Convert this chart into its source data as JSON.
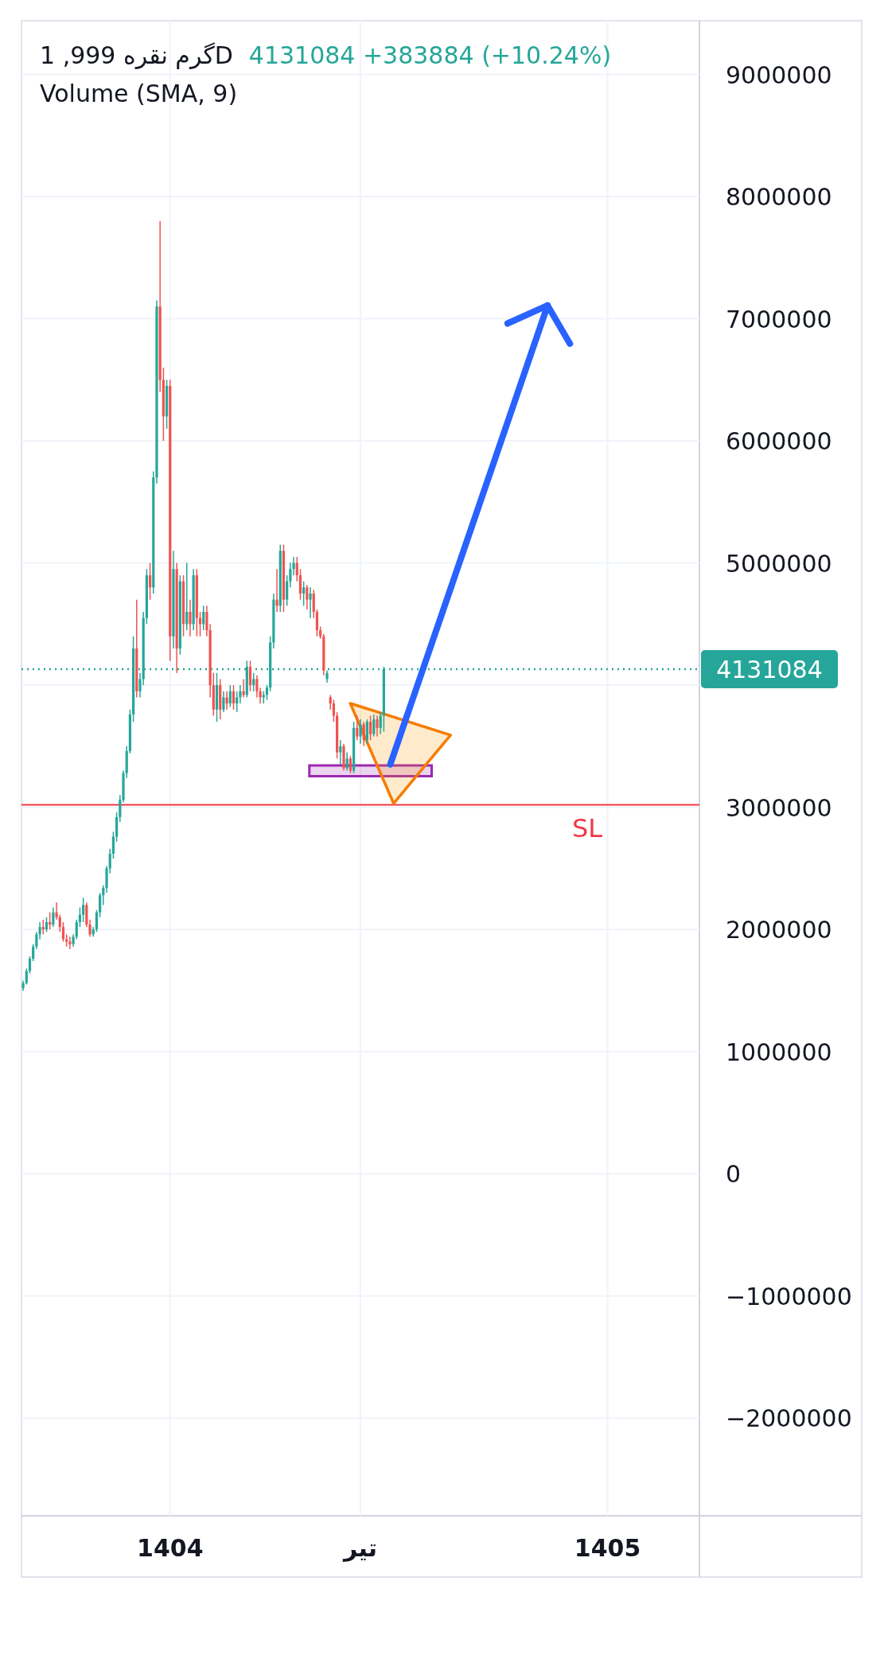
{
  "chart_data": {
    "type": "candlestick",
    "title": "گرم نقره 999, 1D",
    "subtitle": "Volume (SMA, 9)",
    "annotations": [
      "4131084  +383884 (+10.24%)"
    ],
    "categories": [
      null,
      null,
      null,
      null,
      null,
      null,
      null,
      null,
      null,
      null,
      null,
      null,
      null,
      null,
      null,
      null,
      null,
      null,
      null,
      null,
      null,
      null,
      null,
      null,
      null,
      null,
      null,
      null,
      null,
      null,
      null,
      null,
      null,
      null,
      null,
      null,
      null,
      null,
      null,
      null,
      null,
      null,
      null,
      null,
      "1404",
      null,
      null,
      null,
      null,
      null,
      null,
      null,
      null,
      null,
      null,
      null,
      null,
      null,
      null,
      null,
      null,
      null,
      null,
      null,
      null,
      null,
      null,
      null,
      null,
      null,
      null,
      null,
      null,
      null,
      null,
      null,
      null,
      null,
      null,
      null,
      null,
      null,
      null,
      null,
      null,
      null,
      null,
      null,
      null,
      null,
      null,
      null,
      null,
      null,
      null,
      null,
      null,
      null,
      null,
      null,
      null,
      "تیر",
      null,
      null,
      null,
      null,
      null,
      null,
      null,
      null,
      null,
      null,
      null,
      null,
      null,
      null,
      null,
      null,
      null,
      null,
      null,
      null,
      null,
      null,
      null,
      null,
      null,
      null,
      null,
      null,
      null,
      null,
      null,
      null,
      null,
      null,
      null,
      null,
      null,
      null,
      null,
      null,
      null,
      null,
      null,
      null,
      null,
      null,
      null,
      null,
      null,
      null,
      null,
      null,
      null,
      null,
      null,
      null,
      null,
      null,
      null,
      null,
      null,
      null,
      null,
      null,
      null,
      null,
      null,
      null,
      null,
      null,
      null,
      null,
      null,
      "1405",
      null,
      null,
      null,
      null,
      null,
      null,
      null,
      null,
      null,
      null,
      null,
      null,
      null,
      null,
      null,
      null,
      null,
      null,
      null,
      null,
      null,
      null,
      null,
      null,
      null,
      null,
      null
    ],
    "ohlc": [
      [
        1520000,
        1580000,
        1500000,
        1560000
      ],
      [
        1560000,
        1680000,
        1550000,
        1660000
      ],
      [
        1660000,
        1780000,
        1640000,
        1760000
      ],
      [
        1760000,
        1880000,
        1740000,
        1860000
      ],
      [
        1860000,
        1980000,
        1840000,
        1960000
      ],
      [
        1960000,
        2060000,
        1920000,
        2020000
      ],
      [
        2020000,
        2080000,
        1960000,
        2000000
      ],
      [
        2000000,
        2100000,
        1980000,
        2060000
      ],
      [
        2060000,
        2140000,
        2000000,
        2040000
      ],
      [
        2040000,
        2180000,
        2020000,
        2140000
      ],
      [
        2140000,
        2220000,
        2080000,
        2100000
      ],
      [
        2100000,
        2120000,
        1980000,
        2020000
      ],
      [
        2020000,
        2060000,
        1900000,
        1920000
      ],
      [
        1920000,
        1960000,
        1860000,
        1900000
      ],
      [
        1900000,
        1940000,
        1840000,
        1880000
      ],
      [
        1880000,
        1960000,
        1860000,
        1940000
      ],
      [
        1940000,
        2080000,
        1920000,
        2060000
      ],
      [
        2060000,
        2180000,
        2020000,
        2120000
      ],
      [
        2120000,
        2260000,
        2060000,
        2200000
      ],
      [
        2200000,
        2220000,
        2020000,
        2040000
      ],
      [
        2040000,
        2080000,
        1940000,
        1960000
      ],
      [
        1960000,
        2020000,
        1940000,
        2000000
      ],
      [
        2000000,
        2160000,
        1980000,
        2140000
      ],
      [
        2140000,
        2300000,
        2100000,
        2280000
      ],
      [
        2280000,
        2360000,
        2200000,
        2340000
      ],
      [
        2340000,
        2520000,
        2300000,
        2500000
      ],
      [
        2500000,
        2660000,
        2460000,
        2620000
      ],
      [
        2620000,
        2800000,
        2580000,
        2760000
      ],
      [
        2760000,
        2960000,
        2720000,
        2920000
      ],
      [
        2920000,
        3100000,
        2880000,
        3060000
      ],
      [
        3060000,
        3300000,
        3040000,
        3280000
      ],
      [
        3280000,
        3500000,
        3240000,
        3460000
      ],
      [
        3460000,
        3800000,
        3440000,
        3760000
      ],
      [
        3760000,
        4400000,
        3700000,
        4300000
      ],
      [
        4300000,
        4700000,
        3900000,
        3950000
      ],
      [
        3950000,
        4100000,
        3900000,
        4050000
      ],
      [
        4050000,
        4600000,
        4000000,
        4550000
      ],
      [
        4550000,
        4950000,
        4500000,
        4900000
      ],
      [
        4900000,
        5000000,
        4700000,
        4800000
      ],
      [
        4800000,
        5750000,
        4750000,
        5700000
      ],
      [
        5700000,
        7150000,
        5650000,
        7100000
      ],
      [
        7100000,
        7800000,
        6400000,
        6500000
      ],
      [
        6500000,
        6600000,
        6000000,
        6200000
      ],
      [
        6200000,
        6500000,
        6100000,
        6450000
      ],
      [
        6450000,
        6500000,
        4200000,
        4400000
      ],
      [
        4400000,
        5100000,
        4300000,
        4950000
      ],
      [
        4950000,
        5000000,
        4100000,
        4300000
      ],
      [
        4300000,
        4900000,
        4250000,
        4850000
      ],
      [
        4850000,
        4900000,
        4400000,
        4500000
      ],
      [
        4500000,
        5000000,
        4450000,
        4600000
      ],
      [
        4600000,
        4700000,
        4400000,
        4500000
      ],
      [
        4500000,
        4950000,
        4450000,
        4900000
      ],
      [
        4900000,
        4950000,
        4400000,
        4550000
      ],
      [
        4550000,
        4600000,
        4400000,
        4500000
      ],
      [
        4500000,
        4650000,
        4450000,
        4600000
      ],
      [
        4600000,
        4650000,
        4400000,
        4450000
      ],
      [
        4450000,
        4500000,
        3900000,
        4000000
      ],
      [
        4000000,
        4100000,
        3750000,
        3800000
      ],
      [
        3800000,
        4100000,
        3700000,
        4000000
      ],
      [
        4000000,
        4050000,
        3720000,
        3800000
      ],
      [
        3800000,
        3950000,
        3780000,
        3900000
      ],
      [
        3900000,
        3950000,
        3800000,
        3850000
      ],
      [
        3850000,
        4000000,
        3820000,
        3950000
      ],
      [
        3950000,
        4000000,
        3800000,
        3850000
      ],
      [
        3850000,
        3950000,
        3780000,
        3900000
      ],
      [
        3900000,
        4000000,
        3850000,
        3950000
      ],
      [
        3950000,
        4050000,
        3900000,
        3920000
      ],
      [
        3920000,
        4200000,
        3900000,
        4150000
      ],
      [
        4150000,
        4200000,
        3950000,
        4000000
      ],
      [
        4000000,
        4100000,
        3950000,
        4050000
      ],
      [
        4050000,
        4080000,
        3900000,
        3950000
      ],
      [
        3950000,
        3980000,
        3850000,
        3900000
      ],
      [
        3900000,
        3950000,
        3850000,
        3920000
      ],
      [
        3920000,
        4000000,
        3880000,
        3980000
      ],
      [
        3980000,
        4400000,
        3950000,
        4350000
      ],
      [
        4350000,
        4750000,
        4300000,
        4700000
      ],
      [
        4700000,
        4950000,
        4600000,
        4650000
      ],
      [
        4650000,
        5150000,
        4600000,
        5100000
      ],
      [
        5100000,
        5150000,
        4600000,
        4700000
      ],
      [
        4700000,
        4900000,
        4650000,
        4850000
      ],
      [
        4850000,
        5000000,
        4800000,
        4950000
      ],
      [
        4950000,
        5050000,
        4900000,
        5000000
      ],
      [
        5000000,
        5050000,
        4850000,
        4900000
      ],
      [
        4900000,
        4950000,
        4700000,
        4750000
      ],
      [
        4750000,
        4850000,
        4650000,
        4800000
      ],
      [
        4800000,
        4820000,
        4620000,
        4700000
      ],
      [
        4700000,
        4800000,
        4550000,
        4750000
      ],
      [
        4750000,
        4780000,
        4550000,
        4600000
      ],
      [
        4600000,
        4620000,
        4400000,
        4450000
      ],
      [
        4450000,
        4480000,
        4380000,
        4400000
      ],
      [
        4400000,
        4420000,
        4080000,
        4120000
      ],
      [
        4050000,
        4120000,
        4020000,
        4100000
      ],
      [
        3900000,
        3920000,
        3800000,
        3850000
      ],
      [
        3850000,
        3880000,
        3700000,
        3750000
      ],
      [
        3750000,
        3780000,
        3400000,
        3450000
      ],
      [
        3450000,
        3550000,
        3350000,
        3500000
      ],
      [
        3500000,
        3520000,
        3300000,
        3320000
      ],
      [
        3320000,
        3450000,
        3300000,
        3400000
      ],
      [
        3400000,
        3420000,
        3280000,
        3300000
      ],
      [
        3300000,
        3700000,
        3280000,
        3650000
      ],
      [
        3650000,
        3750000,
        3550000,
        3580000
      ],
      [
        3580000,
        3720000,
        3520000,
        3680000
      ],
      [
        3680000,
        3700000,
        3500000,
        3550000
      ],
      [
        3550000,
        3720000,
        3520000,
        3700000
      ],
      [
        3700000,
        3750000,
        3550000,
        3600000
      ],
      [
        3600000,
        3760000,
        3580000,
        3720000
      ],
      [
        3720000,
        3750000,
        3580000,
        3650000
      ],
      [
        3650000,
        3780000,
        3600000,
        3750000
      ],
      [
        3750000,
        4150000,
        3620000,
        4131084
      ],
      null,
      null,
      null,
      null,
      null,
      null,
      null,
      null,
      null,
      null,
      null,
      null,
      null,
      null,
      null,
      null,
      null,
      null,
      null,
      null,
      null,
      null,
      null,
      null,
      null,
      null,
      null,
      null,
      null,
      null,
      null,
      null,
      null,
      null,
      null,
      null,
      null,
      null,
      null,
      null,
      null,
      null,
      null,
      null,
      null,
      null,
      null,
      null,
      null,
      null,
      null,
      null,
      null,
      null,
      null,
      null,
      null,
      null,
      null,
      null,
      null,
      null,
      null,
      null,
      null,
      null,
      null,
      null,
      null,
      null,
      null,
      null,
      null,
      null,
      null,
      null,
      null,
      null,
      null,
      null,
      null,
      null,
      null,
      null,
      null,
      null,
      null,
      null,
      null,
      null,
      null,
      null,
      null,
      null
    ],
    "ylim": [
      -2800000,
      9440000
    ],
    "yticks": [
      {
        "value": -2000000,
        "label": "−2000000"
      },
      {
        "value": -1000000,
        "label": "−1000000"
      },
      0,
      1000000,
      2000000,
      3000000,
      {
        "value": 4000000,
        "label": null
      },
      5000000,
      6000000,
      7000000,
      8000000,
      9000000
    ],
    "ref_lines": [
      {
        "axis": "y",
        "value": 4131084,
        "label": "4131084",
        "color": "#26a69a",
        "line_style": "dotted"
      },
      {
        "axis": "y",
        "value": 3020000,
        "label": "SL",
        "color": "#f23645",
        "line_style": "solid"
      }
    ],
    "grid": true
  }
}
